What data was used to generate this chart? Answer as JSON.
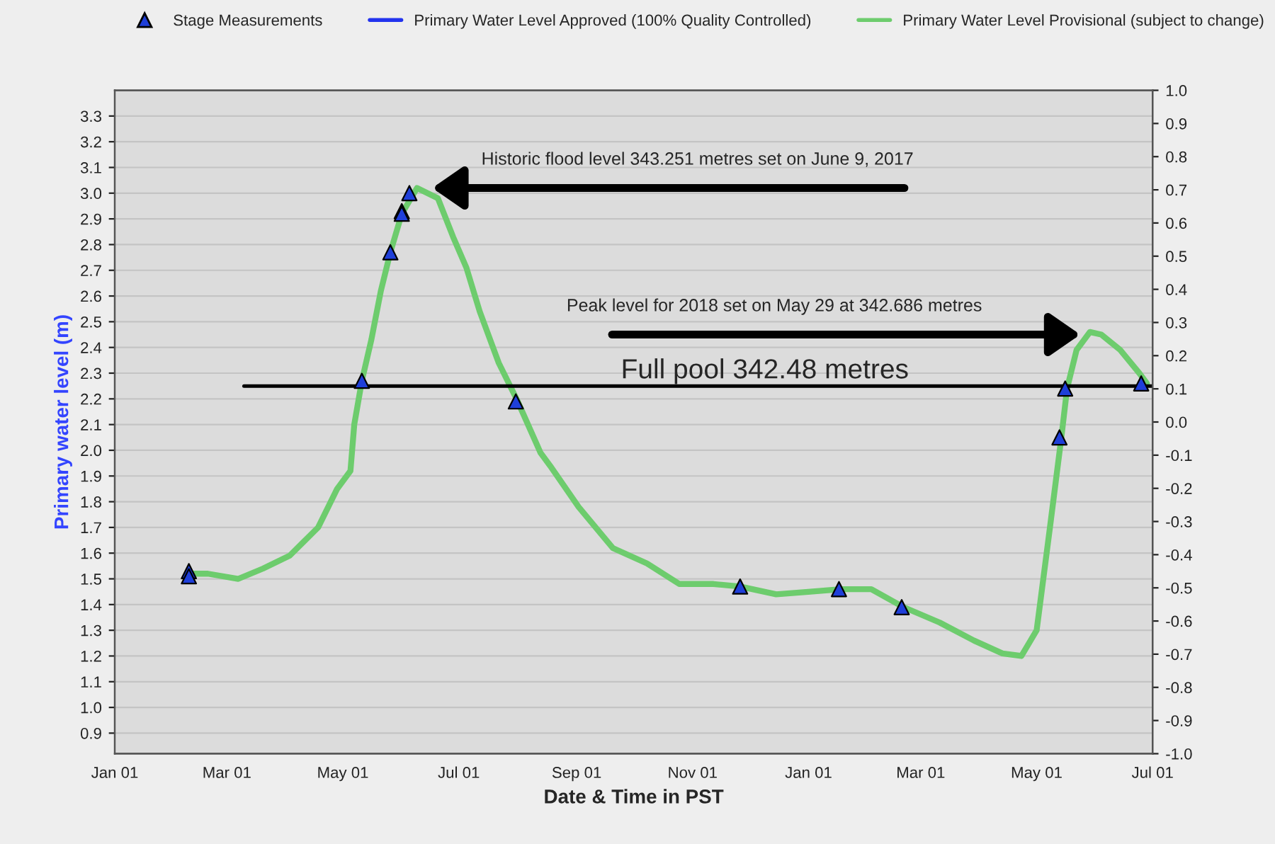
{
  "chart_data": {
    "type": "line",
    "xlabel": "Date & Time in PST",
    "ylabel": "Primary water level (m)",
    "xlim": [
      "2017-01-01",
      "2018-07-01"
    ],
    "xticks": [
      {
        "value": "2017-01-01",
        "label": "Jan 01"
      },
      {
        "value": "2017-03-01",
        "label": "Mar 01"
      },
      {
        "value": "2017-05-01",
        "label": "May 01"
      },
      {
        "value": "2017-07-01",
        "label": "Jul 01"
      },
      {
        "value": "2017-09-01",
        "label": "Sep 01"
      },
      {
        "value": "2017-11-01",
        "label": "Nov 01"
      },
      {
        "value": "2018-01-01",
        "label": "Jan 01"
      },
      {
        "value": "2018-03-01",
        "label": "Mar 01"
      },
      {
        "value": "2018-05-01",
        "label": "May 01"
      },
      {
        "value": "2018-07-01",
        "label": "Jul 01"
      }
    ],
    "ylim": [
      0.82,
      3.4
    ],
    "yticks": [
      0.9,
      {
        "value": 1.0,
        "label": "1.0"
      },
      1.1,
      1.2,
      1.3,
      1.4,
      1.5,
      1.6,
      1.7,
      1.8,
      1.9,
      {
        "value": 2.0,
        "label": "2.0"
      },
      2.1,
      2.2,
      2.3,
      2.4,
      2.5,
      2.6,
      2.7,
      2.8,
      2.9,
      {
        "value": 3.0,
        "label": "3.0"
      },
      3.1,
      3.2,
      3.3
    ],
    "y2lim": [
      -1.0,
      1.0
    ],
    "y2ticks": [
      {
        "value": -1.0,
        "label": "-1.0"
      },
      -0.9,
      -0.8,
      -0.7,
      -0.6,
      -0.5,
      -0.4,
      -0.3,
      -0.2,
      -0.1,
      {
        "value": 0.0,
        "label": "0.0"
      },
      0.1,
      0.2,
      0.3,
      0.4,
      0.5,
      0.6,
      0.7,
      0.8,
      0.9,
      {
        "value": 1.0,
        "label": "1.0"
      }
    ],
    "grid": "y",
    "legend": "top",
    "series": [
      {
        "name": "Stage Measurements",
        "type": "scatter",
        "marker": "triangle",
        "color": "#1f3fd9",
        "x": [
          "2017-02-09",
          "2017-02-09",
          "2017-05-11",
          "2017-05-26",
          "2017-06-01",
          "2017-06-01",
          "2017-06-05",
          "2017-07-31",
          "2017-11-26",
          "2018-01-17",
          "2018-02-19",
          "2018-05-13",
          "2018-05-16",
          "2018-06-25"
        ],
        "values": [
          1.53,
          1.51,
          2.27,
          2.77,
          2.93,
          2.92,
          3.0,
          2.19,
          1.47,
          1.46,
          1.39,
          2.05,
          2.24,
          2.26
        ]
      },
      {
        "name": "Primary Water Level Approved (100% Quality Controlled)",
        "type": "line",
        "color": "#2233ee"
      },
      {
        "name": "Primary Water Level Provisional (subject to change)",
        "type": "line",
        "color": "#6dcc6d",
        "x": [
          "2017-02-08",
          "2017-02-19",
          "2017-03-07",
          "2017-03-20",
          "2017-04-03",
          "2017-04-18",
          "2017-04-28",
          "2017-05-05",
          "2017-05-07",
          "2017-05-11",
          "2017-05-16",
          "2017-05-21",
          "2017-05-26",
          "2017-06-01",
          "2017-06-09",
          "2017-06-20",
          "2017-06-28",
          "2017-07-05",
          "2017-07-12",
          "2017-07-22",
          "2017-08-01",
          "2017-08-13",
          "2017-08-18",
          "2017-09-02",
          "2017-09-20",
          "2017-10-08",
          "2017-10-25",
          "2017-11-12",
          "2017-11-26",
          "2017-12-15",
          "2018-01-02",
          "2018-01-18",
          "2018-02-03",
          "2018-02-20",
          "2018-03-11",
          "2018-03-29",
          "2018-04-13",
          "2018-04-23",
          "2018-05-01",
          "2018-05-08",
          "2018-05-14",
          "2018-05-17",
          "2018-05-22",
          "2018-05-29",
          "2018-06-04",
          "2018-06-14",
          "2018-06-24",
          "2018-06-28"
        ],
        "values": [
          1.52,
          1.52,
          1.5,
          1.54,
          1.59,
          1.7,
          1.85,
          1.92,
          2.1,
          2.27,
          2.43,
          2.62,
          2.77,
          2.92,
          3.02,
          2.98,
          2.83,
          2.71,
          2.54,
          2.34,
          2.19,
          1.99,
          1.94,
          1.78,
          1.62,
          1.56,
          1.48,
          1.48,
          1.47,
          1.44,
          1.45,
          1.46,
          1.46,
          1.39,
          1.33,
          1.26,
          1.21,
          1.2,
          1.3,
          1.7,
          2.05,
          2.24,
          2.39,
          2.46,
          2.45,
          2.39,
          2.3,
          2.26
        ]
      },
      {
        "color": "#000000",
        "x": [
          "2017-03-10",
          "2018-07-01"
        ],
        "values": [
          2.25,
          2.25
        ]
      }
    ],
    "annotations": [
      {
        "text": "Historic flood level 343.251 metres set on June 9, 2017",
        "x": "2017-06-17",
        "y": 3.02
      },
      {
        "text": "Peak level for 2018 set on May 29 at 342.686 metres",
        "x": "2018-05-24",
        "y": 2.45
      },
      {
        "text": "Full pool 342.48 metres",
        "x": "2017-12-09",
        "y": 2.25
      }
    ]
  }
}
